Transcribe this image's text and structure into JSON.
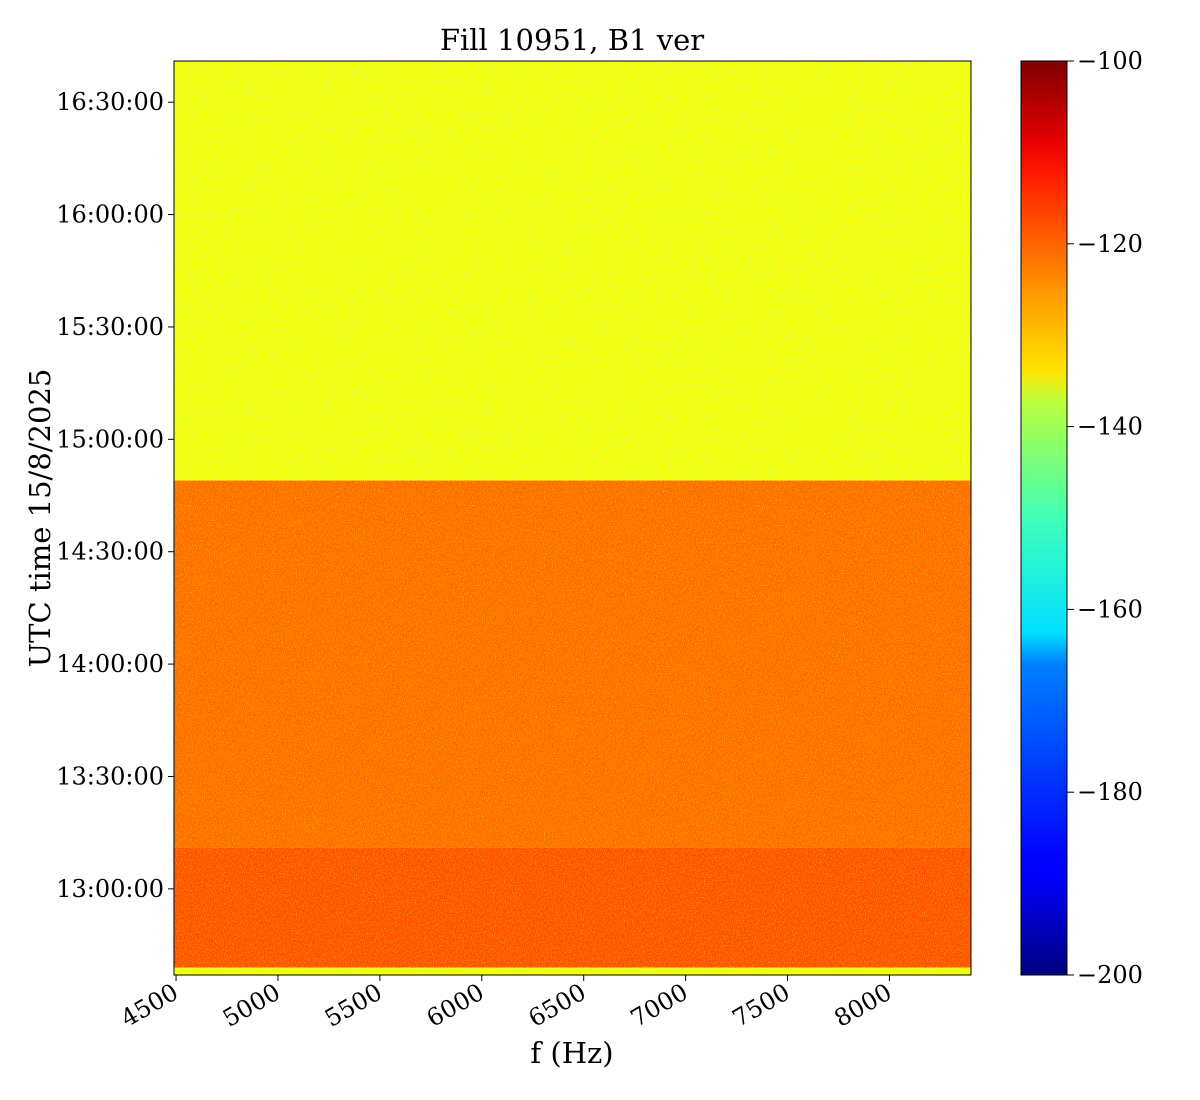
{
  "chart_data": {
    "type": "heatmap",
    "title": "Fill 10951, B1 ver",
    "xlabel": "f (Hz)",
    "ylabel": "UTC time 15/8/2025",
    "x_ticks": [
      4500,
      5000,
      5500,
      6000,
      6500,
      7000,
      7500,
      8000
    ],
    "x_tick_labels": [
      "4500",
      "5000",
      "5500",
      "6000",
      "6500",
      "7000",
      "7500",
      "8000"
    ],
    "xlim": [
      4490,
      8400
    ],
    "y_tick_labels": [
      "16:30:00",
      "16:00:00",
      "15:30:00",
      "15:00:00",
      "14:30:00",
      "14:00:00",
      "13:30:00",
      "13:00:00"
    ],
    "ylim": [
      "12:37:00",
      "16:41:00"
    ],
    "colormap": "jet",
    "colorbar": {
      "range": [
        -200,
        -100
      ],
      "ticks": [
        -100,
        -120,
        -140,
        -160,
        -180,
        -200
      ],
      "tick_labels": [
        "−100",
        "−120",
        "−140",
        "−160",
        "−180",
        "−200"
      ]
    },
    "regions": [
      {
        "time_start": "14:49:00",
        "time_end": "16:41:00",
        "level_db": -138
      },
      {
        "time_start": "13:11:00",
        "time_end": "14:49:00",
        "level_db": -123
      },
      {
        "time_start": "12:39:00",
        "time_end": "13:11:00",
        "level_db": -120
      },
      {
        "time_start": "12:37:00",
        "time_end": "12:39:00",
        "level_db": -138
      }
    ],
    "grid": false,
    "legend": "colorbar-right"
  }
}
